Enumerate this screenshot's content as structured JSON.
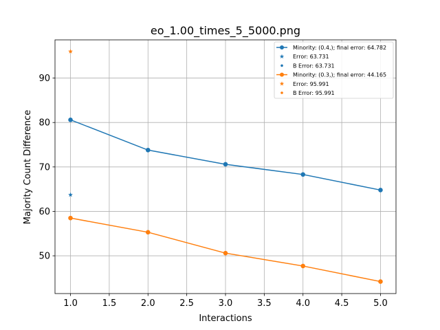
{
  "chart_data": {
    "type": "line",
    "title": "eo_1.00_times_5_5000.png",
    "xlabel": "Interactions",
    "ylabel": "Majority Count Difference",
    "xlim": [
      0.8,
      5.2
    ],
    "ylim": [
      41.5,
      98.6
    ],
    "xticks": [
      1.0,
      1.5,
      2.0,
      2.5,
      3.0,
      3.5,
      4.0,
      4.5,
      5.0
    ],
    "xtick_labels": [
      "1.0",
      "1.5",
      "2.0",
      "2.5",
      "3.0",
      "3.5",
      "4.0",
      "4.5",
      "5.0"
    ],
    "yticks": [
      50,
      60,
      70,
      80,
      90
    ],
    "ytick_labels": [
      "50",
      "60",
      "70",
      "80",
      "90"
    ],
    "grid": true,
    "legend_position": "top-right",
    "series": [
      {
        "name": "Minority: (0.4,); final error: 64.782",
        "color": "#1f77b4",
        "x": [
          1,
          2,
          3,
          4,
          5
        ],
        "values": [
          80.6,
          73.8,
          70.6,
          68.3,
          64.8
        ],
        "error_marker": {
          "label": "Error: 63.731",
          "x": 1,
          "y": 63.731,
          "marker": "star"
        },
        "b_error_marker": {
          "label": "B Error: 63.731",
          "marker": "dot"
        }
      },
      {
        "name": "Minority: (0.3,); final error: 44.165",
        "color": "#ff7f0e",
        "x": [
          1,
          2,
          3,
          4,
          5
        ],
        "values": [
          58.5,
          55.3,
          50.6,
          47.7,
          44.2
        ],
        "error_marker": {
          "label": "Error: 95.991",
          "x": 1,
          "y": 95.991,
          "marker": "star"
        },
        "b_error_marker": {
          "label": "B Error: 95.991",
          "marker": "dot"
        }
      }
    ]
  }
}
